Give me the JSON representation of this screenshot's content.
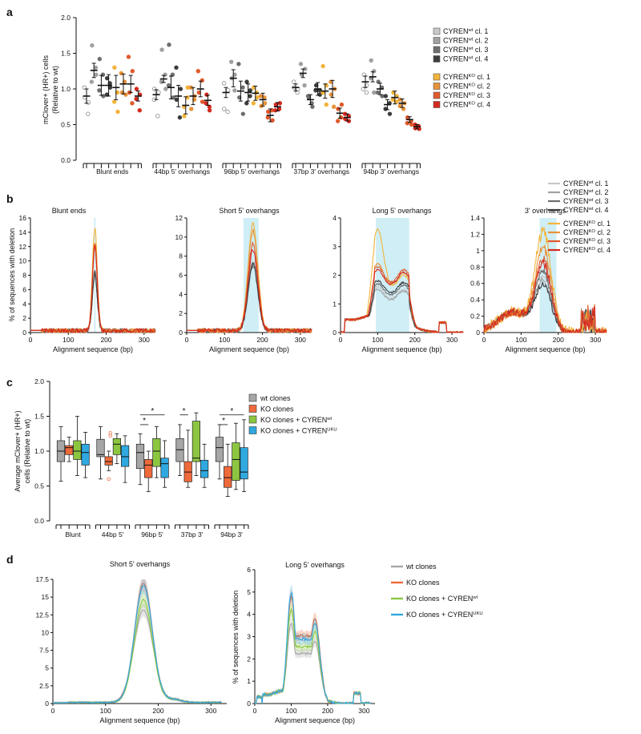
{
  "colors": {
    "wt": [
      "#c8c8c8",
      "#a0a0a0",
      "#6e6e6e",
      "#3c3c3c"
    ],
    "ko": [
      "#f2b43a",
      "#e8933a",
      "#e05a2c",
      "#d42a1e"
    ],
    "c_wt": "#a6a6a6",
    "c_ko": "#ef6a3a",
    "c_kowt": "#8cc641",
    "c_kouku": "#30a8e0",
    "band": "#cfeef6"
  },
  "panels": {
    "a_label": "a",
    "b_label": "b",
    "c_label": "c",
    "d_label": "d"
  },
  "legend_a": {
    "wt": [
      {
        "base": "CYREN",
        "sup": "wt",
        "tail": " cl. 1"
      },
      {
        "base": "CYREN",
        "sup": "wt",
        "tail": " cl. 2"
      },
      {
        "base": "CYREN",
        "sup": "wt",
        "tail": " cl. 3"
      },
      {
        "base": "CYREN",
        "sup": "wt",
        "tail": " cl. 4"
      }
    ],
    "ko": [
      {
        "base": "CYREN",
        "sup": "KO",
        "tail": " cl. 1"
      },
      {
        "base": "CYREN",
        "sup": "KO",
        "tail": " cl. 2"
      },
      {
        "base": "CYREN",
        "sup": "KO",
        "tail": " cl. 3"
      },
      {
        "base": "CYREN",
        "sup": "KO",
        "tail": " cl. 4"
      }
    ]
  },
  "legend_c": [
    {
      "base": "wt clones",
      "sup": "",
      "tail": ""
    },
    {
      "base": "KO clones",
      "sup": "",
      "tail": ""
    },
    {
      "base": "KO clones + CYREN",
      "sup": "wt",
      "tail": ""
    },
    {
      "base": "KO clones + CYREN",
      "sup": "UKU",
      "tail": ""
    }
  ],
  "chart_data": [
    {
      "id": "a",
      "type": "scatter",
      "ylabel": "mClover+ (HR+) cells (Relative to wt)",
      "ylabel_lines": [
        "mClover+ (HR+) cells",
        "(Relative to wt)"
      ],
      "ylim": [
        0,
        2.0
      ],
      "yticks": [
        "0.0",
        "0.5",
        "1.0",
        "1.5",
        "2.0"
      ],
      "groups": [
        "Blunt ends",
        "44bp 5' overhangs",
        "96bp 5' overhangs",
        "37bp 3' overhangs",
        "94bp 3' overhangs"
      ],
      "series_order": [
        "CYREN wt cl. 1",
        "CYREN wt cl. 2",
        "CYREN wt cl. 3",
        "CYREN wt cl. 4",
        "CYREN KO cl. 1",
        "CYREN KO cl. 2",
        "CYREN KO cl. 3",
        "CYREN KO cl. 4"
      ],
      "means": [
        [
          0.9,
          1.26,
          1.05,
          1.05,
          1.02,
          1.07,
          1.07,
          0.9
        ],
        [
          0.92,
          1.14,
          1.02,
          0.9,
          0.77,
          0.9,
          1.0,
          0.84
        ],
        [
          0.95,
          1.15,
          0.97,
          0.95,
          0.94,
          0.85,
          0.63,
          0.75
        ],
        [
          1.02,
          1.22,
          0.85,
          1.0,
          0.97,
          1.0,
          0.66,
          0.6
        ],
        [
          1.1,
          1.17,
          1.0,
          0.78,
          0.88,
          0.8,
          0.57,
          0.47
        ]
      ],
      "errors": [
        [
          0.1,
          0.1,
          0.14,
          0.15,
          0.17,
          0.14,
          0.12,
          0.07
        ],
        [
          0.07,
          0.05,
          0.16,
          0.15,
          0.12,
          0.12,
          0.11,
          0.07
        ],
        [
          0.07,
          0.12,
          0.14,
          0.12,
          0.1,
          0.09,
          0.09,
          0.06
        ],
        [
          0.05,
          0.06,
          0.07,
          0.09,
          0.1,
          0.12,
          0.07,
          0.05
        ],
        [
          0.08,
          0.07,
          0.08,
          0.07,
          0.09,
          0.06,
          0.04,
          0.03
        ]
      ],
      "points": [
        [
          [
            0.88,
            0.81,
            1.02,
            0.65
          ],
          [
            1.61,
            1.3,
            1.1,
            1.2
          ],
          [
            1.42,
            1.2,
            0.98,
            0.9
          ],
          [
            1.15,
            1.08,
            0.92,
            1.02
          ],
          [
            1.3,
            0.95,
            0.82,
            0.68
          ],
          [
            1.22,
            1.1,
            0.95,
            0.92
          ],
          [
            1.45,
            1.25,
            0.95,
            0.8
          ],
          [
            0.86,
            0.92,
            1.0,
            0.7
          ]
        ],
        [
          [
            0.85,
            0.95,
            1.0,
            0.62
          ],
          [
            1.55,
            1.2,
            1.1,
            1.0
          ],
          [
            1.62,
            1.2,
            1.05,
            0.88
          ],
          [
            1.3,
            1.0,
            0.85,
            0.6
          ],
          [
            0.75,
            0.88,
            0.62,
            1.02
          ],
          [
            1.02,
            0.9,
            0.72,
            0.85
          ],
          [
            1.25,
            1.12,
            0.95,
            0.82
          ],
          [
            0.92,
            0.75,
            0.8,
            0.7
          ]
        ],
        [
          [
            0.72,
            0.98,
            1.08,
            0.68
          ],
          [
            1.38,
            1.2,
            1.15,
            0.98
          ],
          [
            1.35,
            1.02,
            0.88,
            0.65
          ],
          [
            1.1,
            0.98,
            0.8,
            0.9
          ],
          [
            1.02,
            0.95,
            0.8,
            0.88
          ],
          [
            0.9,
            0.88,
            0.76,
            0.8
          ],
          [
            0.68,
            0.56,
            0.6,
            0.7
          ],
          [
            0.78,
            0.72,
            0.7,
            0.8
          ]
        ],
        [
          [
            1.1,
            1.0,
            1.02,
            0.95
          ],
          [
            1.35,
            1.28,
            1.2,
            1.05
          ],
          [
            0.9,
            0.8,
            0.88,
            0.75
          ],
          [
            1.05,
            0.98,
            0.98,
            0.92
          ],
          [
            1.32,
            1.05,
            0.95,
            0.78
          ],
          [
            1.1,
            1.0,
            0.92,
            0.75
          ],
          [
            0.72,
            0.6,
            0.55,
            0.78
          ],
          [
            0.65,
            0.55,
            0.58,
            0.62
          ]
        ],
        [
          [
            1.2,
            1.05,
            1.0,
            0.95
          ],
          [
            1.4,
            1.25,
            1.15,
            0.95
          ],
          [
            1.1,
            1.02,
            0.95,
            0.9
          ],
          [
            0.9,
            0.8,
            0.72,
            0.65
          ],
          [
            0.95,
            0.9,
            0.85,
            0.82
          ],
          [
            0.85,
            0.8,
            0.76,
            0.72
          ],
          [
            0.6,
            0.55,
            0.52,
            0.5
          ],
          [
            0.5,
            0.48,
            0.45,
            0.44
          ]
        ]
      ]
    },
    {
      "id": "b",
      "type": "line",
      "ylabel": "% of sequences with deletion",
      "xlabel": "Alignment sequence (bp)",
      "legend": [
        "CYREN wt cl. 1",
        "CYREN wt cl. 2",
        "CYREN wt cl. 3",
        "CYREN wt cl. 4",
        "CYREN KO cl. 1",
        "CYREN KO cl. 2",
        "CYREN KO cl. 3",
        "CYREN KO cl. 4"
      ],
      "subplots": [
        {
          "title": "Blunt ends",
          "xlim": [
            0,
            330
          ],
          "xticks": [
            0,
            100,
            200,
            300
          ],
          "ylim": [
            0,
            16
          ],
          "yticks": [
            0,
            2,
            4,
            6,
            8,
            10,
            12,
            14,
            16
          ],
          "band": [
            168,
            172
          ],
          "peak_center": 170,
          "peak_width": 9,
          "wt_peaks": [
            7.5,
            8.0,
            7.8,
            8.2
          ],
          "ko_peaks": [
            14.5,
            12.5,
            11.5,
            12.0
          ]
        },
        {
          "title": "Short 5' overhangs",
          "xlim": [
            0,
            330
          ],
          "xticks": [
            0,
            100,
            200,
            300
          ],
          "ylim": [
            0,
            12
          ],
          "yticks": [
            0,
            2,
            4,
            6,
            8,
            10,
            12
          ],
          "band": [
            150,
            190
          ],
          "peak_center": 175,
          "peak_width": 18,
          "wt_peaks": [
            7.0,
            7.2,
            6.8,
            7.0
          ],
          "ko_peaks": [
            11.2,
            10.5,
            9.2,
            8.5
          ]
        },
        {
          "title": "Long 5' overhangs",
          "xlim": [
            0,
            330
          ],
          "xticks": [
            0,
            100,
            200,
            300
          ],
          "ylim": [
            0,
            4
          ],
          "yticks": [
            0,
            1,
            2,
            3,
            4
          ],
          "band": [
            95,
            185
          ],
          "wt_levels": [
            [
              1.6,
              1.5
            ],
            [
              1.5,
              1.45
            ],
            [
              1.7,
              1.65
            ],
            [
              1.8,
              1.75
            ]
          ],
          "ko_levels": [
            [
              3.6,
              2.0
            ],
            [
              2.4,
              2.1
            ],
            [
              2.3,
              2.2
            ],
            [
              2.2,
              2.1
            ]
          ]
        },
        {
          "title": "3' overhangs",
          "xlim": [
            0,
            330
          ],
          "xticks": [
            0,
            100,
            200,
            300
          ],
          "ylim": [
            0,
            1.4
          ],
          "yticks": [
            0,
            0.2,
            0.4,
            0.6,
            0.8,
            1.0,
            1.2,
            1.4
          ],
          "band": [
            150,
            195
          ],
          "peak_center": 160,
          "peak_width": 30,
          "wt_peaks": [
            0.65,
            0.6,
            0.7,
            0.55
          ],
          "ko_peaks": [
            1.2,
            1.0,
            0.85,
            0.8
          ]
        }
      ]
    },
    {
      "id": "c",
      "type": "box",
      "ylabel": "Average mClover+ (HR+) cells (Relative to wt)",
      "ylabel_lines": [
        "Average mClover+ (HR+)",
        "cells (Relative to wt)"
      ],
      "ylim": [
        0,
        2.0
      ],
      "yticks": [
        "0.0",
        "0.5",
        "1.0",
        "1.5",
        "2.0"
      ],
      "categories": [
        "Blunt",
        "44bp 5'",
        "96bp 5'",
        "37bp 3'",
        "94bp 3'"
      ],
      "series": [
        "wt clones",
        "KO clones",
        "KO clones + CYREN wt",
        "KO clones + CYREN UKU"
      ],
      "boxes": [
        [
          [
            0.57,
            0.85,
            1.0,
            1.15,
            1.35
          ],
          [
            0.85,
            0.95,
            1.05,
            1.08,
            1.2
          ],
          [
            0.65,
            0.88,
            1.0,
            1.15,
            1.5
          ],
          [
            0.62,
            0.8,
            0.98,
            1.1,
            1.27
          ]
        ],
        [
          [
            0.6,
            0.92,
            0.95,
            1.17,
            1.35
          ],
          [
            0.72,
            0.8,
            0.85,
            0.92,
            1.0
          ],
          [
            0.82,
            0.95,
            1.1,
            1.18,
            1.25
          ],
          [
            0.55,
            0.78,
            0.92,
            1.08,
            1.22
          ]
        ],
        [
          [
            0.52,
            0.75,
            0.98,
            1.1,
            1.25
          ],
          [
            0.42,
            0.62,
            0.8,
            0.88,
            1.0
          ],
          [
            0.62,
            0.78,
            1.0,
            1.18,
            1.35
          ],
          [
            0.48,
            0.62,
            0.82,
            0.9,
            1.15
          ]
        ],
        [
          [
            0.65,
            0.85,
            1.02,
            1.18,
            1.38
          ],
          [
            0.48,
            0.56,
            0.7,
            0.85,
            1.3
          ],
          [
            0.65,
            0.85,
            0.9,
            1.43,
            1.55
          ],
          [
            0.48,
            0.62,
            0.72,
            0.87,
            1.1
          ]
        ],
        [
          [
            0.6,
            0.85,
            1.05,
            1.2,
            1.38
          ],
          [
            0.35,
            0.48,
            0.62,
            0.78,
            1.1
          ],
          [
            0.45,
            0.58,
            0.88,
            1.12,
            1.4
          ],
          [
            0.42,
            0.6,
            0.7,
            1.05,
            1.45
          ]
        ]
      ],
      "outliers": [
        [
          1,
          1,
          0.6
        ],
        [
          1,
          1,
          1.22
        ],
        [
          1,
          1,
          1.26
        ]
      ],
      "significance": "*"
    },
    {
      "id": "d",
      "type": "line",
      "ylabel": "% of sequences with deletion",
      "xlabel": "Alignment sequence (bp)",
      "legend": [
        "wt clones",
        "KO clones",
        "KO clones + CYREN wt",
        "KO clones + CYREN UKU"
      ],
      "subplots": [
        {
          "title": "Short 5' overhangs",
          "xlim": [
            0,
            330
          ],
          "xticks": [
            0,
            100,
            200,
            300
          ],
          "ylim": [
            0,
            17.5
          ],
          "ytick_labels": [
            "0",
            "2.5",
            "5",
            "7.5",
            "10",
            "12.5",
            "15",
            "17.5"
          ],
          "peaks": [
            13.0,
            16.8,
            14.5,
            16.5
          ]
        },
        {
          "title": "Long 5' overhangs",
          "xlim": [
            0,
            330
          ],
          "xticks": [
            0,
            100,
            200,
            300
          ],
          "ylim": [
            0,
            6
          ],
          "ytick_labels": [
            "0",
            "1",
            "2",
            "3",
            "4",
            "5",
            "6"
          ],
          "levels": [
            [
              3.6,
              2.8
            ],
            [
              4.8,
              3.8
            ],
            [
              4.2,
              3.2
            ],
            [
              5.0,
              3.6
            ]
          ]
        }
      ]
    }
  ]
}
